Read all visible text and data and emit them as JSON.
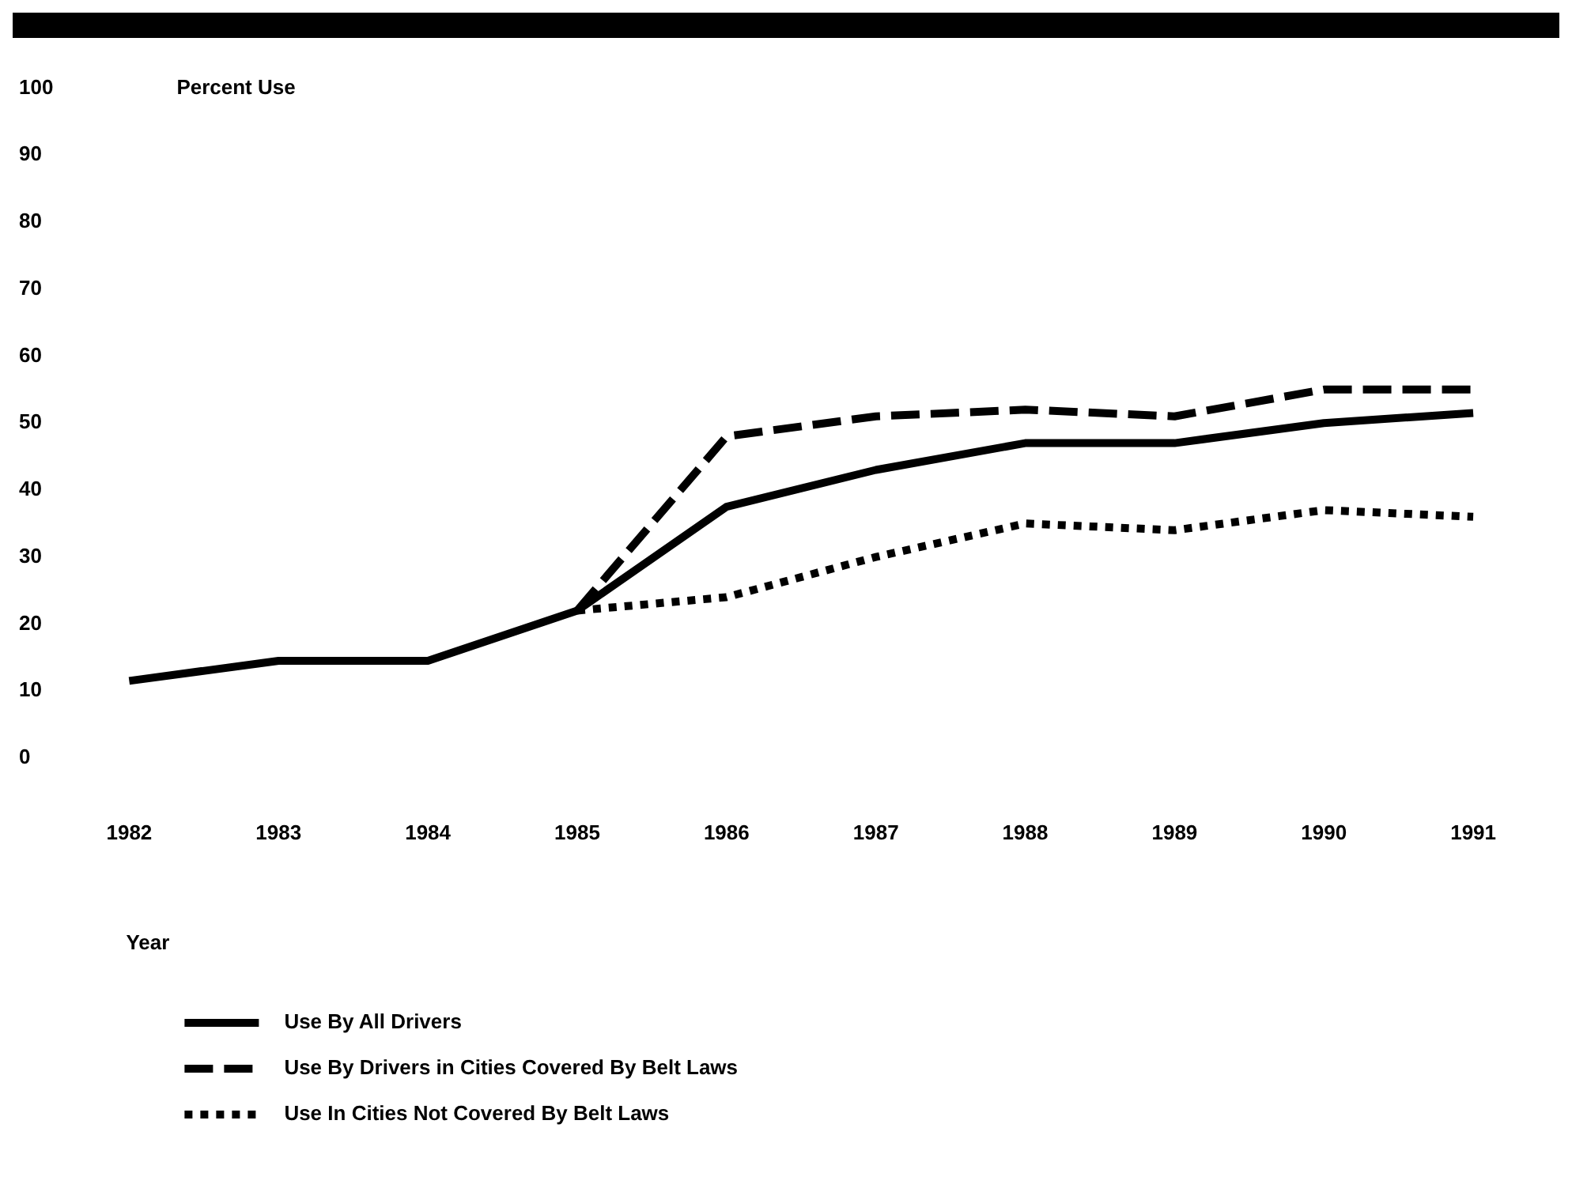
{
  "chart_data": {
    "type": "line",
    "ylabel": "Percent Use",
    "xlabel": "Year",
    "categories": [
      "1982",
      "1983",
      "1984",
      "1985",
      "1986",
      "1987",
      "1988",
      "1989",
      "1990",
      "1991"
    ],
    "series": [
      {
        "name": "Use By All Drivers",
        "color": "#000000",
        "line_style": "solid",
        "values": [
          11.5,
          14.5,
          14.5,
          22,
          37.5,
          43,
          47,
          47,
          50,
          51.5
        ]
      },
      {
        "name": "Use By Drivers in Cities Covered By Belt Laws",
        "color": "#000000",
        "line_style": "dashed",
        "values": [
          null,
          null,
          null,
          22,
          48,
          51,
          52,
          51,
          55,
          55
        ]
      },
      {
        "name": "Use In Cities Not Covered By Belt Laws",
        "color": "#000000",
        "line_style": "dotted",
        "values": [
          null,
          null,
          null,
          22,
          24,
          30,
          35,
          34,
          37,
          36
        ]
      }
    ],
    "ylim": [
      0,
      100
    ],
    "yticks": [
      0,
      10,
      20,
      30,
      40,
      50,
      60,
      70,
      80,
      90,
      100
    ],
    "grid": false,
    "legend": "bottom left",
    "marker": "none"
  }
}
